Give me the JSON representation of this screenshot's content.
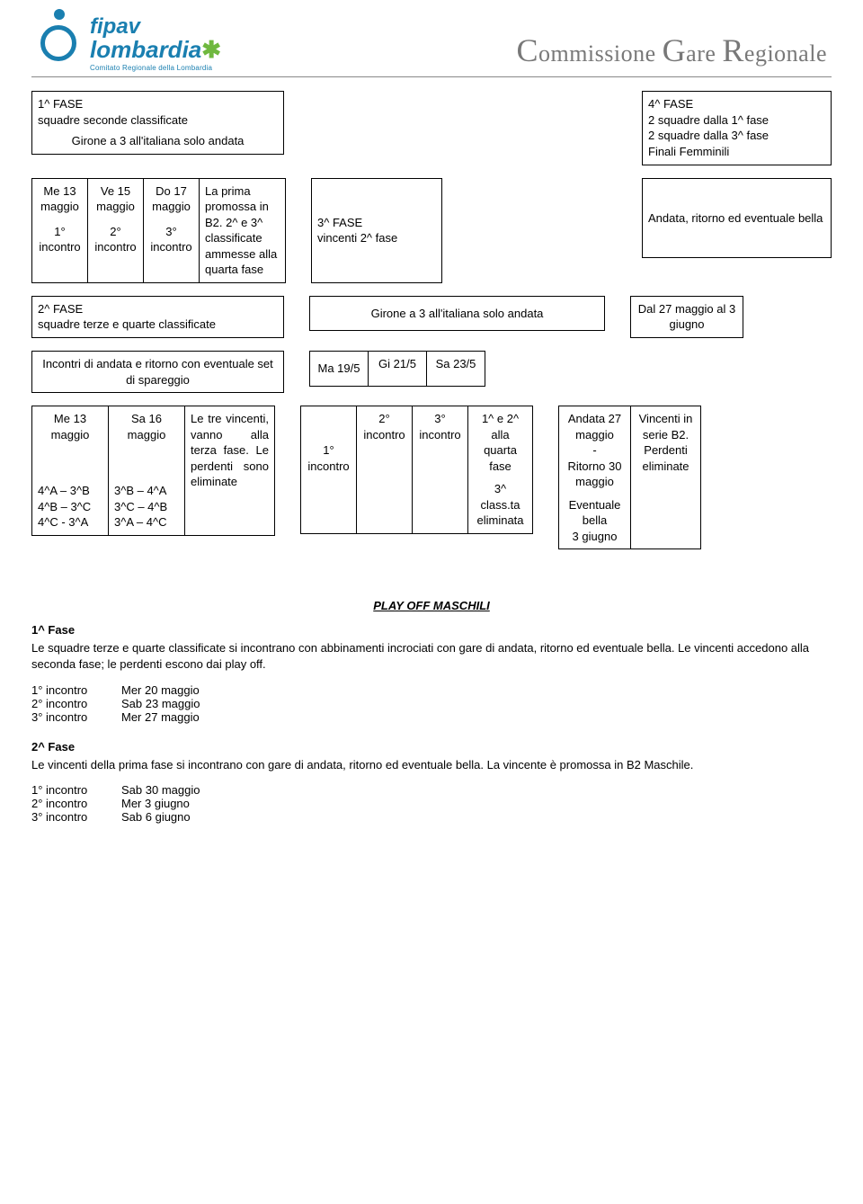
{
  "header": {
    "logo_top": "fipav",
    "logo_bottom": "lombardia",
    "logo_sub": "Comitato Regionale della Lombardia",
    "right_title_parts": [
      "C",
      "ommissione ",
      "G",
      "are ",
      "R",
      "egionale"
    ]
  },
  "row1": {
    "left": {
      "line1": "1^ FASE",
      "line2": "squadre seconde classificate",
      "line3": "Girone a 3 all'italiana solo andata"
    },
    "right": {
      "line1": "4^ FASE",
      "line2": "2 squadre dalla 1^ fase",
      "line3": "2 squadre dalla 3^ fase",
      "line4": "Finali Femminili"
    }
  },
  "row2": {
    "c1a": "Me 13",
    "c1b": "maggio",
    "c1c": "1°",
    "c1d": "incontro",
    "c2a": "Ve 15",
    "c2b": "maggio",
    "c2c": "2°",
    "c2d": "incontro",
    "c3a": "Do 17",
    "c3b": "maggio",
    "c3c": "3°",
    "c3d": "incontro",
    "c4": "La prima promossa in B2.\n2^ e 3^ classificate ammesse alla quarta fase",
    "c5a": "3^ FASE",
    "c5b": "vincenti 2^ fase",
    "c6": "Andata, ritorno ed eventuale bella"
  },
  "row3": {
    "left1": "2^ FASE",
    "left2": "squadre terze e quarte classificate",
    "mid": "Girone a 3 all'italiana solo andata",
    "right": "Dal 27 maggio al 3 giugno"
  },
  "row4": {
    "left": "Incontri di andata e ritorno con eventuale set di spareggio",
    "d1": "Ma 19/5",
    "d2": "Gi 21/5",
    "d3": "Sa 23/5"
  },
  "row5": {
    "c1a": "Me 13",
    "c1b": "maggio",
    "c1_m1": "4^A – 3^B",
    "c1_m2": "4^B – 3^C",
    "c1_m3": "4^C -  3^A",
    "c2a": "Sa 16",
    "c2b": "maggio",
    "c2_m1": "3^B – 4^A",
    "c2_m2": "3^C – 4^B",
    "c2_m3": "3^A – 4^C",
    "c3": "Le tre vincenti, vanno alla terza fase. Le perdenti sono eliminate",
    "c4a": "1°",
    "c4b": "incontro",
    "c5a": "2°",
    "c5b": "incontro",
    "c6a": "3°",
    "c6b": "incontro",
    "c7a": "1^ e 2^ alla quarta fase",
    "c7b": "3^ class.ta eliminata",
    "c8a": "Andata 27 maggio",
    "c8b": "Ritorno 30 maggio",
    "c8c": "Eventuale bella",
    "c8d": "3 giugno",
    "c9a": "Vincenti in serie B2.",
    "c9b": "Perdenti eliminate"
  },
  "playoff": {
    "heading": "PLAY OFF MASCHILI",
    "fase1_title": "1^ Fase",
    "fase1_text": "Le squadre terze e quarte classificate si incontrano con abbinamenti incrociati con gare di andata, ritorno ed eventuale bella. Le vincenti accedono alla seconda fase; le perdenti escono dai play off.",
    "fase1_sched": [
      {
        "label": "1° incontro",
        "date": "Mer  20 maggio"
      },
      {
        "label": "2° incontro",
        "date": "Sab  23 maggio"
      },
      {
        "label": "3° incontro",
        "date": "Mer 27 maggio"
      }
    ],
    "fase2_title": "2^ Fase",
    "fase2_text": "Le vincenti della prima fase si incontrano con gare di andata, ritorno ed eventuale bella. La vincente è promossa in B2 Maschile.",
    "fase2_sched": [
      {
        "label": "1° incontro",
        "date": "Sab  30 maggio"
      },
      {
        "label": "2° incontro",
        "date": "Mer  3 giugno"
      },
      {
        "label": "3° incontro",
        "date": "Sab  6 giugno"
      }
    ]
  },
  "colors": {
    "brand": "#1a7fb0",
    "green": "#6fb83f",
    "gray": "#787878"
  }
}
